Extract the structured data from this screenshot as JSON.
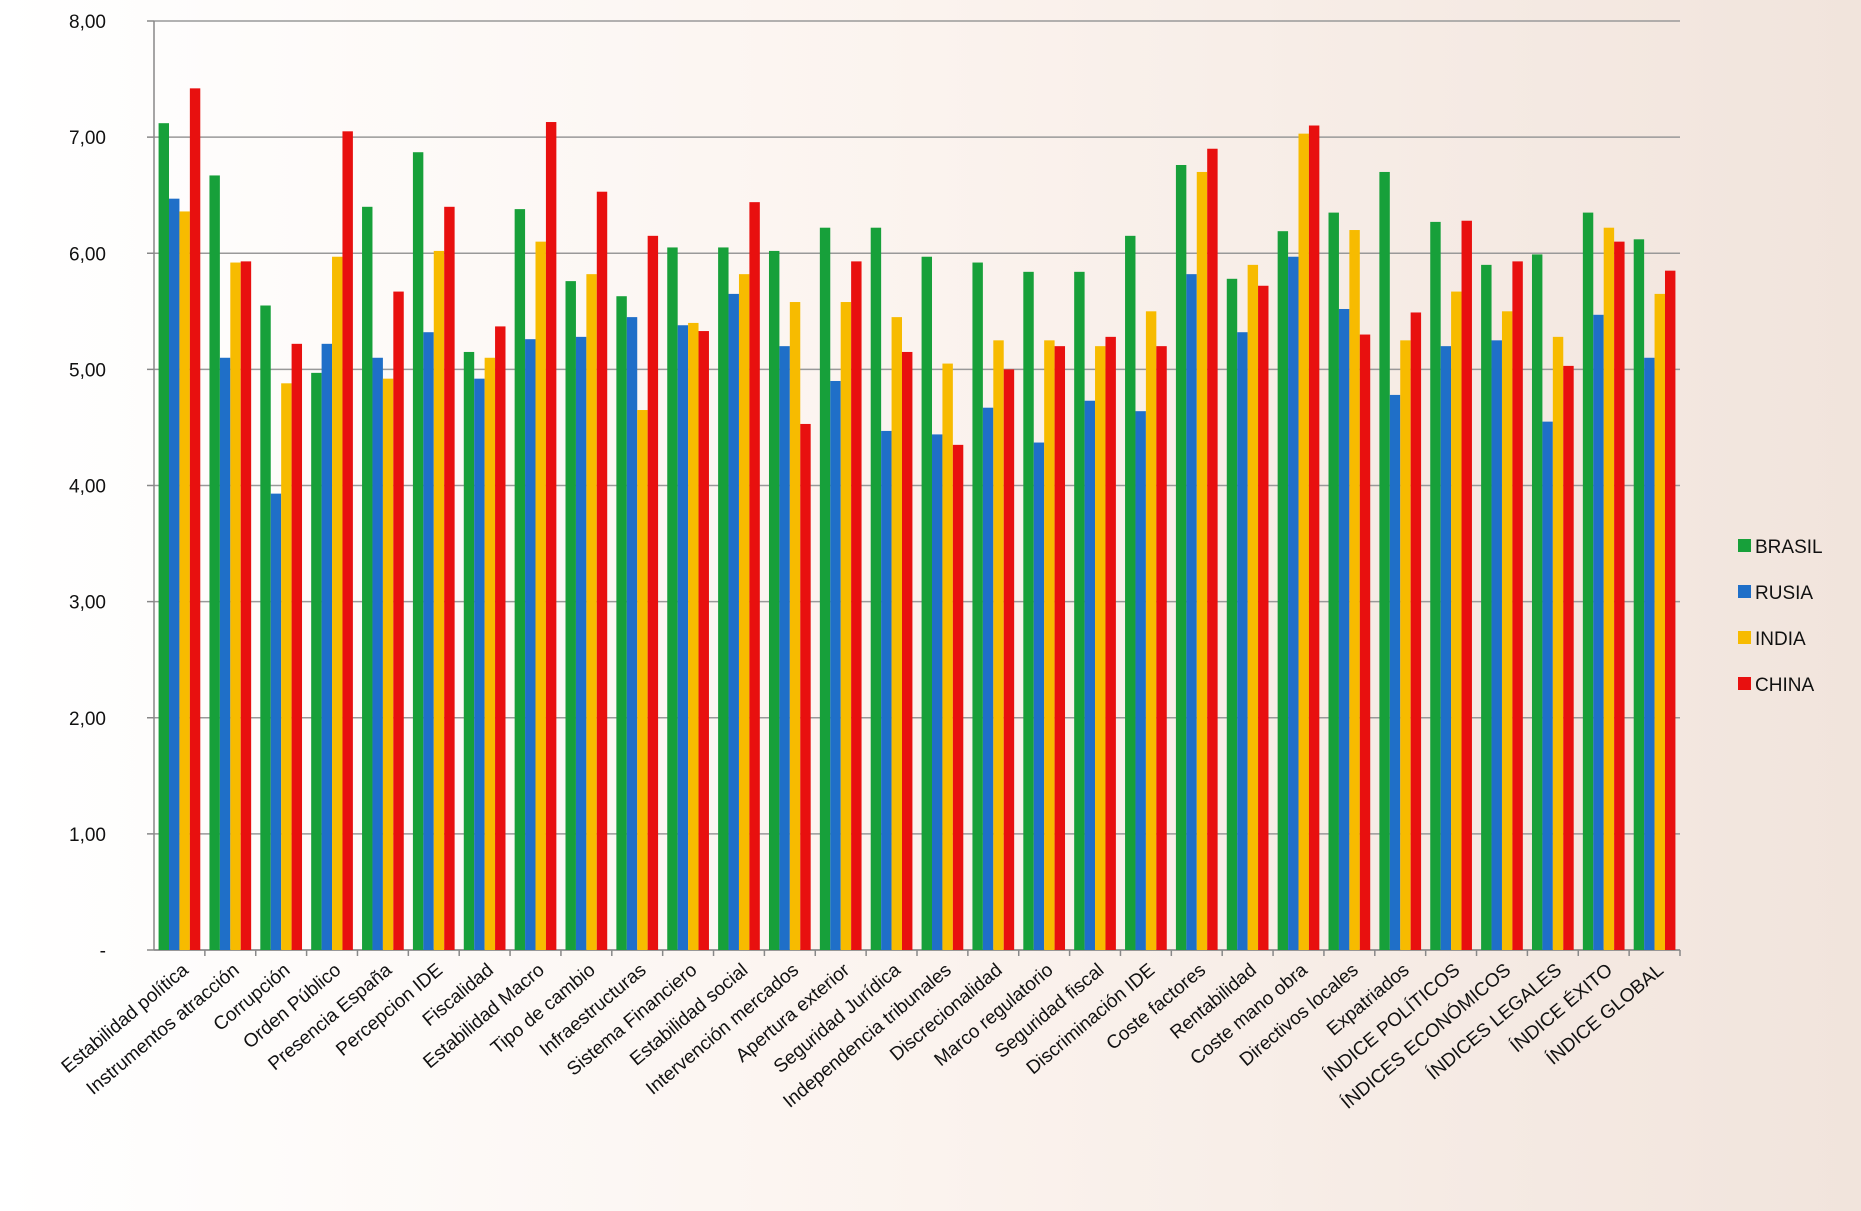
{
  "chart_data": {
    "type": "bar",
    "categories": [
      "Estabilidad política",
      "Instrumentos atracción",
      "Corrupción",
      "Orden Público",
      "Presencia España",
      "Percepcion IDE",
      "Fiscalidad",
      "Estabilidad Macro",
      "Tipo de cambio",
      "Infraestructuras",
      "Sistema Financiero",
      "Estabilidad social",
      "Intervención mercados",
      "Apertura exterior",
      "Seguridad Jurídica",
      "Independencia tribunales",
      "Discrecionalidad",
      "Marco regulatorio",
      "Seguridad fiscal",
      "Discriminación IDE",
      "Coste factores",
      "Rentabilidad",
      "Coste mano obra",
      "Directivos locales",
      "Expatriados",
      "ÍNDICE POLÍTICOS",
      "ÍNDICES ECONÓMICOS",
      "ÍNDICES LEGALES",
      "ÍNDICE ÉXITO",
      "ÍNDICE GLOBAL"
    ],
    "series": [
      {
        "name": "BRASIL",
        "color": "#17a03a",
        "values": [
          7.12,
          6.67,
          5.55,
          4.97,
          6.4,
          6.87,
          5.15,
          6.38,
          5.76,
          5.63,
          6.05,
          6.05,
          6.02,
          6.22,
          6.22,
          5.97,
          5.92,
          5.84,
          5.84,
          6.15,
          6.76,
          5.78,
          6.19,
          6.35,
          6.7,
          6.27,
          5.9,
          5.99,
          6.35,
          6.12
        ]
      },
      {
        "name": "RUSIA",
        "color": "#1f6fc8",
        "values": [
          6.47,
          5.1,
          3.93,
          5.22,
          5.1,
          5.32,
          4.92,
          5.26,
          5.28,
          5.45,
          5.38,
          5.65,
          5.2,
          4.9,
          4.47,
          4.44,
          4.67,
          4.37,
          4.73,
          4.64,
          5.82,
          5.32,
          5.97,
          5.52,
          4.78,
          5.2,
          5.25,
          4.55,
          5.47,
          5.1
        ]
      },
      {
        "name": "INDIA",
        "color": "#f7bb00",
        "values": [
          6.36,
          5.92,
          4.88,
          5.97,
          4.92,
          6.02,
          5.1,
          6.1,
          5.82,
          4.65,
          5.4,
          5.82,
          5.58,
          5.58,
          5.45,
          5.05,
          5.25,
          5.25,
          5.2,
          5.5,
          6.7,
          5.9,
          7.03,
          6.2,
          5.25,
          5.67,
          5.5,
          5.28,
          6.22,
          5.65
        ]
      },
      {
        "name": "CHINA",
        "color": "#e8100f",
        "values": [
          7.42,
          5.93,
          5.22,
          7.05,
          5.67,
          6.4,
          5.37,
          7.13,
          6.53,
          6.15,
          5.33,
          6.44,
          4.53,
          5.93,
          5.15,
          4.35,
          5.0,
          5.2,
          5.28,
          5.2,
          6.9,
          5.72,
          7.1,
          5.3,
          5.49,
          6.28,
          5.93,
          5.03,
          6.1,
          5.85
        ]
      }
    ],
    "ylim": [
      0,
      8
    ],
    "yticks": [
      {
        "value": 0,
        "label": "-"
      },
      {
        "value": 1,
        "label": "1,00"
      },
      {
        "value": 2,
        "label": "2,00"
      },
      {
        "value": 3,
        "label": "3,00"
      },
      {
        "value": 4,
        "label": "4,00"
      },
      {
        "value": 5,
        "label": "5,00"
      },
      {
        "value": 6,
        "label": "6,00"
      },
      {
        "value": 7,
        "label": "7,00"
      },
      {
        "value": 8,
        "label": "8,00"
      }
    ],
    "grid": true,
    "legend": "right"
  }
}
